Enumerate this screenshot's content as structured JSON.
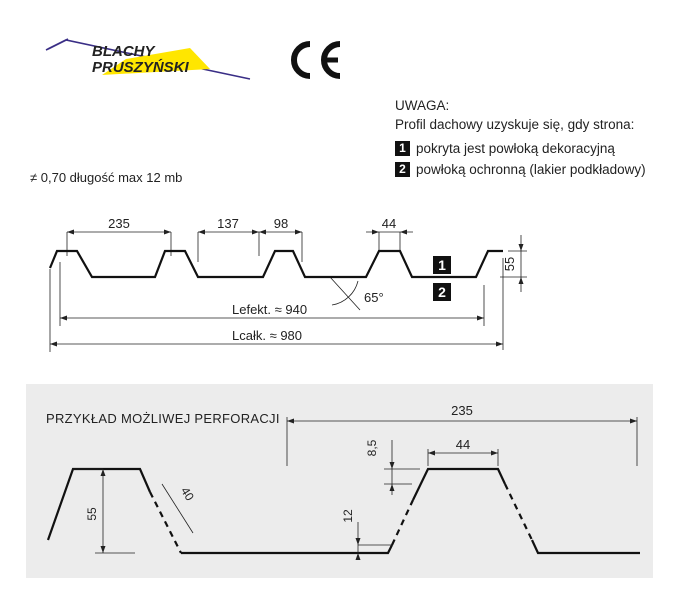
{
  "logo": {
    "line1": "BLACHY",
    "line2": "PRUSZYŃSKI",
    "red": "#d6121a",
    "yellow": "#ffe600",
    "navy": "#3a2e86"
  },
  "ce_mark": "CE",
  "notice": {
    "title": "UWAGA:",
    "text": "Profil dachowy uzyskuje się, gdy strona:",
    "items": [
      {
        "num": "1",
        "label": "pokryta jest powłoką dekoracyjną"
      },
      {
        "num": "2",
        "label": "powłoką ochronną (lakier podkładowy)"
      }
    ]
  },
  "spec_text": "≠ 0,70 długość max 12 mb",
  "profile": {
    "dims": {
      "pitch": "235",
      "bottom": "137",
      "slope": "98",
      "top": "44",
      "height": "55",
      "angle": "65°",
      "effective": "Lefekt. ≈ 940",
      "total": "Lcałk. ≈ 980"
    },
    "side_labels": [
      "1",
      "2"
    ]
  },
  "perforation": {
    "title": "PRZYKŁAD MOŻLIWEJ PERFORACJI",
    "dims": {
      "pitch": "235",
      "top": "44",
      "top_gap": "8,5",
      "bottom_gap": "12",
      "height": "55",
      "hole": "40"
    }
  }
}
